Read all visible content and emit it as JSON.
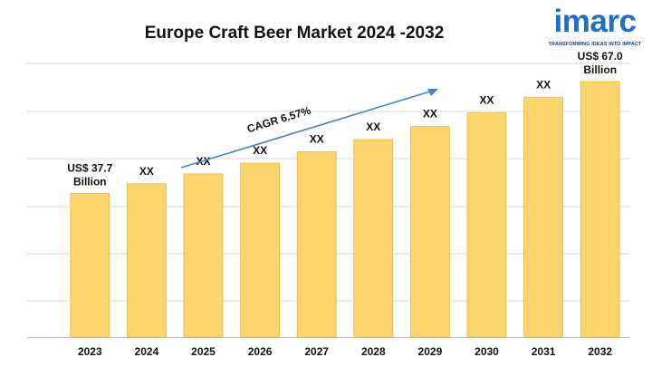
{
  "logo": {
    "word": "imarc",
    "tagline": "TRANSFORMING IDEAS INTO IMPACT",
    "brand_color": "#1d72c4"
  },
  "annotation": {
    "cagr": "CAGR 6.57%",
    "arrow_color": "#4a84b8"
  },
  "colors": {
    "bar": "#fcd66c",
    "bar_edge": "#e2b946",
    "grid": "#d9d9d9"
  },
  "chart_data": {
    "type": "bar",
    "title": "Europe Craft Beer Market 2024 -2032",
    "xlabel": "",
    "ylabel": "",
    "categories": [
      "2023",
      "2024",
      "2025",
      "2026",
      "2027",
      "2028",
      "2029",
      "2030",
      "2031",
      "2032"
    ],
    "values": [
      37.7,
      40.2,
      42.8,
      45.6,
      48.6,
      51.8,
      55.2,
      58.8,
      62.9,
      67.0
    ],
    "data_labels": [
      "US$ 37.7 Billion",
      "XX",
      "XX",
      "XX",
      "XX",
      "XX",
      "XX",
      "XX",
      "XX",
      "US$ 67.0 Billion"
    ],
    "unit": "US$ Billion",
    "ylim": [
      0,
      67.0
    ],
    "grid": true,
    "legend": "none"
  }
}
